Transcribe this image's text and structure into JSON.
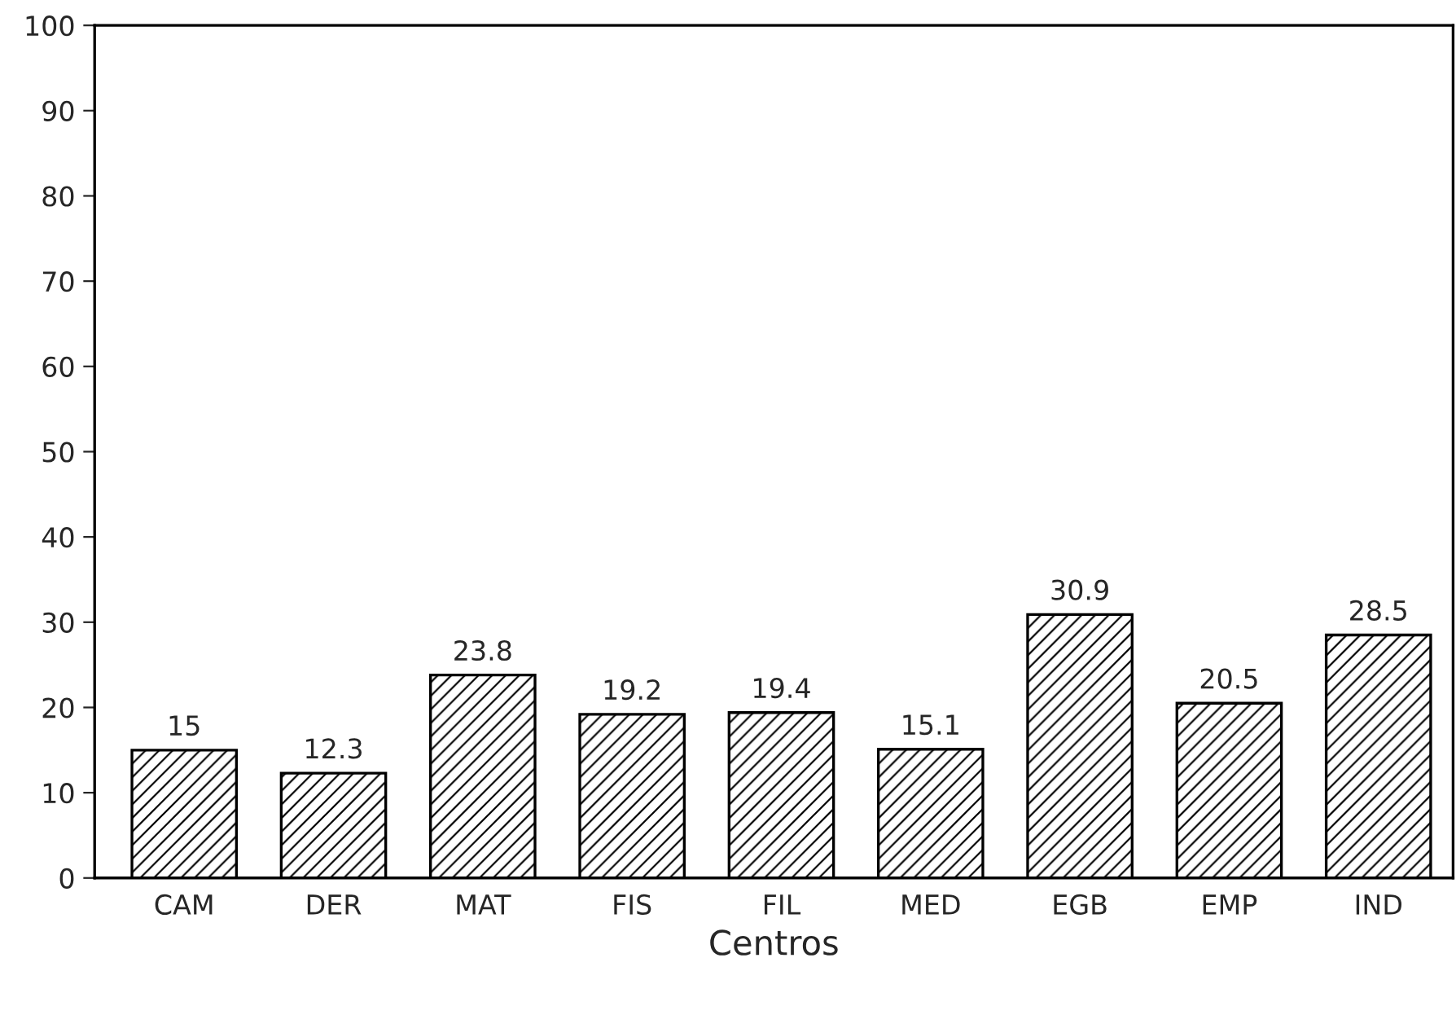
{
  "chart_data": {
    "type": "bar",
    "xlabel": "Centros",
    "categories": [
      "CAM",
      "DER",
      "MAT",
      "FIS",
      "FIL",
      "MED",
      "EGB",
      "EMP",
      "IND"
    ],
    "values": [
      15,
      12.3,
      23.8,
      19.2,
      19.4,
      15.1,
      30.9,
      20.5,
      28.5
    ],
    "color": "#000000",
    "ylim": [
      0,
      100
    ],
    "yticks": [
      0,
      10,
      20,
      30,
      40,
      50,
      60,
      70,
      80,
      90,
      100
    ],
    "data_labels": true,
    "grid": false
  }
}
